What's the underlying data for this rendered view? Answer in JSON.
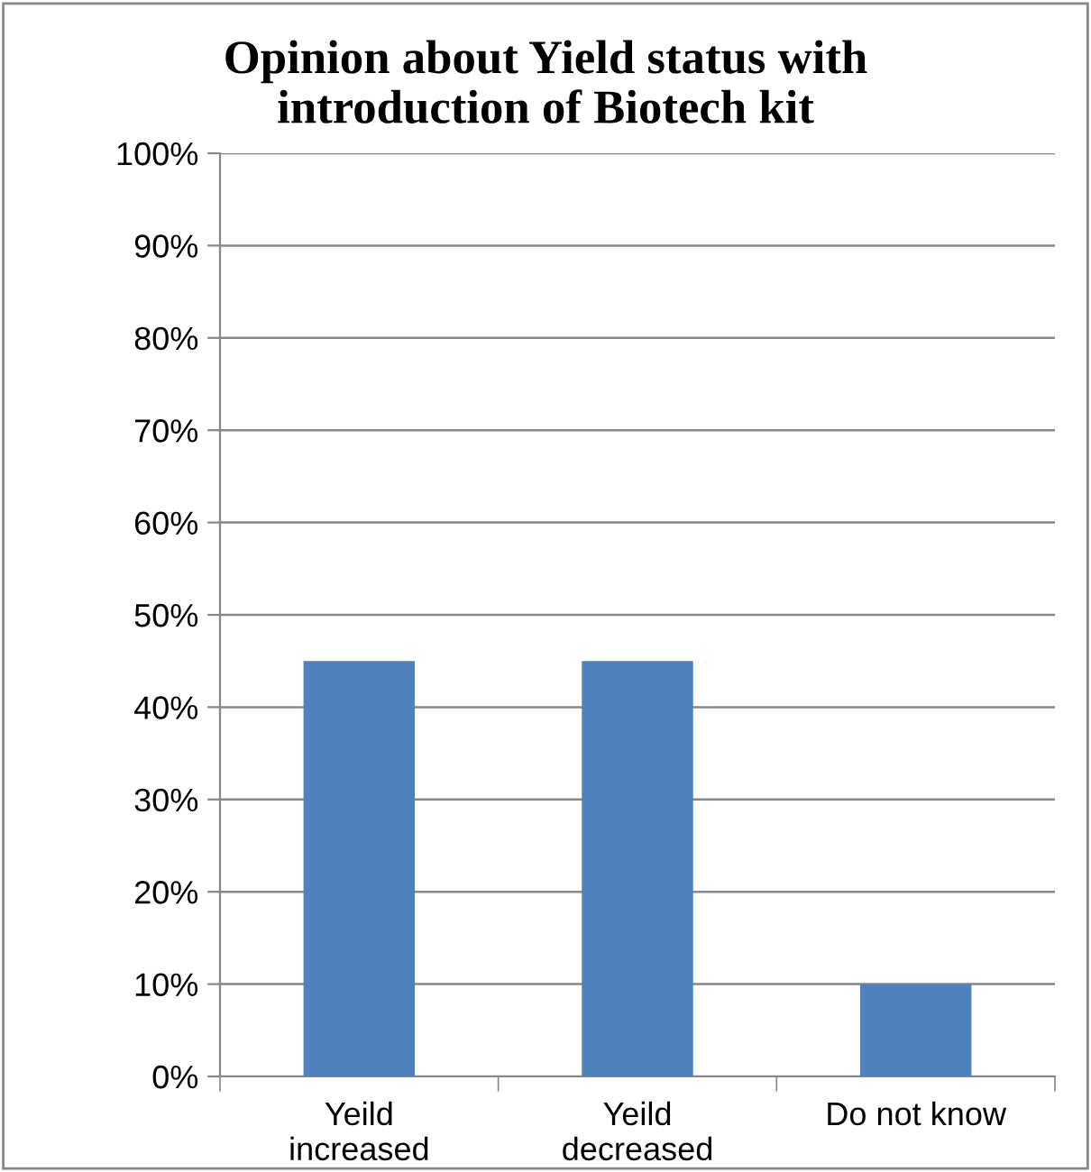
{
  "chart_data": {
    "type": "bar",
    "title": "Opinion about Yield status with\nintroduction of Biotech kit",
    "categories": [
      "Yeild\nincreased",
      "Yeild\ndecreased",
      "Do not know"
    ],
    "values": [
      45,
      45,
      10
    ],
    "color": "#4f81bd",
    "ylim": [
      0,
      100
    ],
    "yticks": [
      {
        "value": 0,
        "label": "0%"
      },
      {
        "value": 10,
        "label": "10%"
      },
      {
        "value": 20,
        "label": "20%"
      },
      {
        "value": 30,
        "label": "30%"
      },
      {
        "value": 40,
        "label": "40%"
      },
      {
        "value": 50,
        "label": "50%"
      },
      {
        "value": 60,
        "label": "60%"
      },
      {
        "value": 70,
        "label": "70%"
      },
      {
        "value": 80,
        "label": "80%"
      },
      {
        "value": 90,
        "label": "90%"
      },
      {
        "value": 100,
        "label": "100%"
      }
    ],
    "grid": "y",
    "legend": false
  }
}
